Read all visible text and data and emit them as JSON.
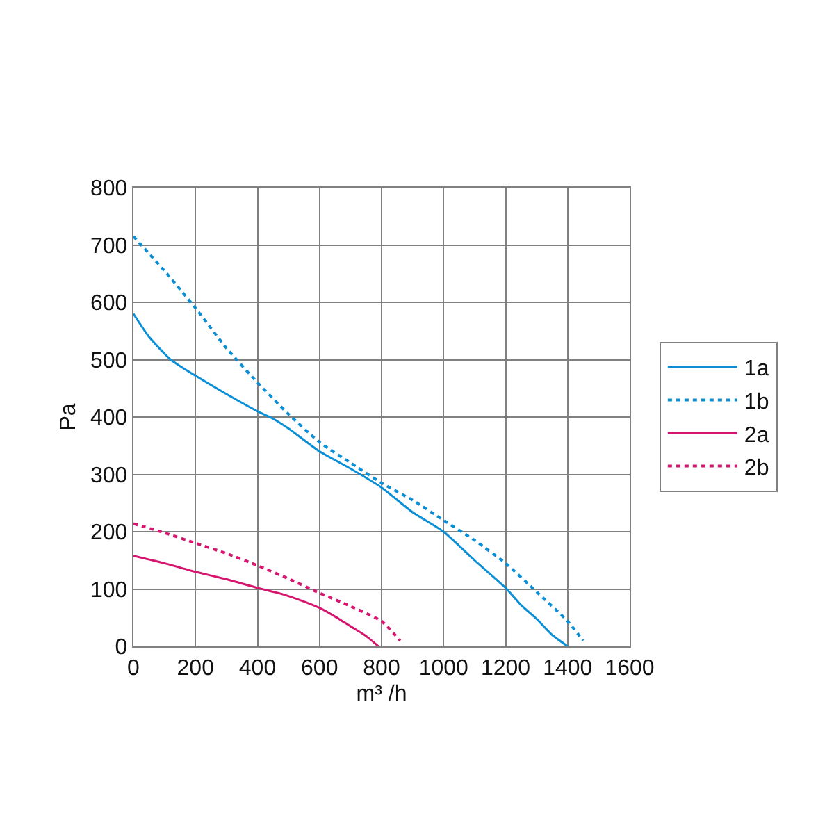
{
  "chart_data": {
    "type": "line",
    "xlabel": "m³ /h",
    "ylabel": "Pa",
    "xlim": [
      0,
      1600
    ],
    "ylim": [
      0,
      800
    ],
    "xticks": [
      0,
      200,
      400,
      600,
      800,
      1000,
      1200,
      1400,
      1600
    ],
    "yticks": [
      0,
      100,
      200,
      300,
      400,
      500,
      600,
      700,
      800
    ],
    "grid": true,
    "legend": "right",
    "series": [
      {
        "name": "1a",
        "color": "#0a8fd6",
        "line_style": "solid",
        "x": [
          0,
          50,
          120,
          200,
          300,
          400,
          450,
          500,
          600,
          700,
          800,
          900,
          1000,
          1100,
          1200,
          1250,
          1300,
          1350,
          1400
        ],
        "values": [
          580,
          540,
          500,
          472,
          440,
          410,
          397,
          380,
          340,
          310,
          277,
          234,
          200,
          150,
          102,
          72,
          48,
          20,
          0
        ]
      },
      {
        "name": "1b",
        "color": "#0a8fd6",
        "line_style": "dotted",
        "x": [
          0,
          100,
          200,
          300,
          400,
          500,
          600,
          700,
          800,
          900,
          1000,
          1100,
          1200,
          1300,
          1400,
          1450
        ],
        "values": [
          715,
          655,
          590,
          520,
          460,
          405,
          356,
          320,
          285,
          255,
          220,
          185,
          145,
          95,
          44,
          10
        ]
      },
      {
        "name": "2a",
        "color": "#d6156e",
        "line_style": "solid",
        "x": [
          0,
          100,
          200,
          300,
          400,
          480,
          550,
          600,
          650,
          700,
          750,
          790
        ],
        "values": [
          158,
          145,
          130,
          117,
          102,
          91,
          78,
          67,
          52,
          35,
          18,
          0
        ]
      },
      {
        "name": "2b",
        "color": "#d6156e",
        "line_style": "dotted",
        "x": [
          0,
          100,
          200,
          300,
          400,
          500,
          600,
          700,
          800,
          860
        ],
        "values": [
          214,
          198,
          180,
          162,
          141,
          118,
          93,
          70,
          44,
          10
        ]
      }
    ]
  }
}
